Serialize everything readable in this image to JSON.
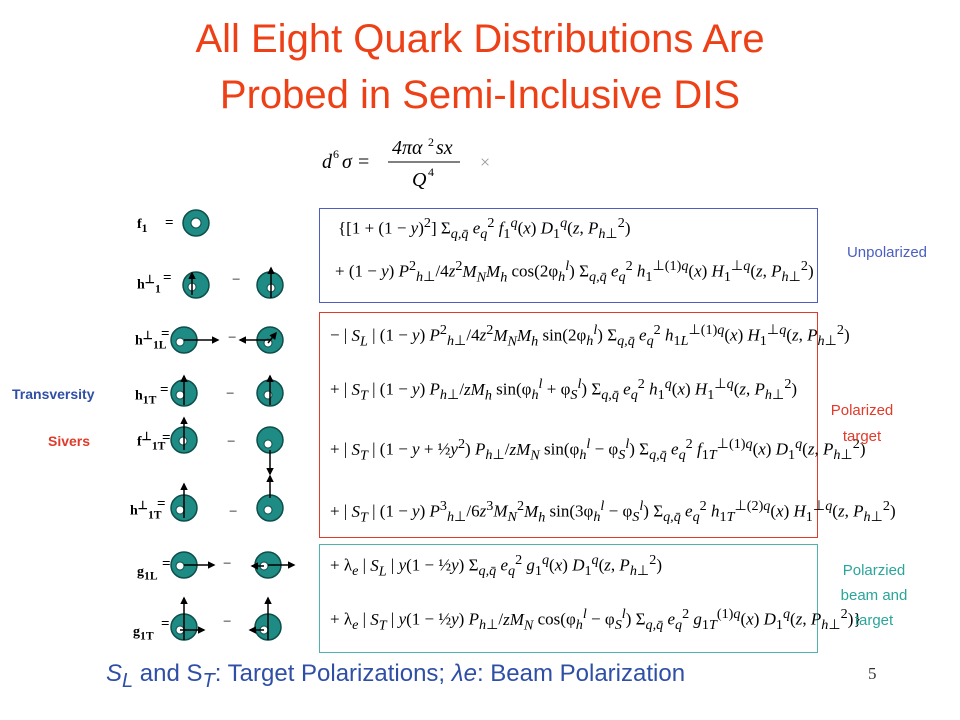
{
  "title": {
    "line1": "All Eight Quark Distributions Are",
    "line2": "Probed in Semi-Inclusive DIS"
  },
  "labels": {
    "unpolarized": "Unpolarized",
    "polarized_target_line1": "Polarized",
    "polarized_target_line2": "target",
    "beam_target_line1": "Polarzied",
    "beam_target_line2": "beam and",
    "beam_target_line3": "target",
    "transversity": "Transversity",
    "sivers": "Sivers"
  },
  "distributions": [
    {
      "main": "f",
      "sub": "1",
      "sup": ""
    },
    {
      "main": "h",
      "sub": "1",
      "sup": "⊥"
    },
    {
      "main": "h",
      "sub": "1L",
      "sup": "⊥"
    },
    {
      "main": "h",
      "sub": "1T",
      "sup": ""
    },
    {
      "main": "f",
      "sub": "1T",
      "sup": "⊥"
    },
    {
      "main": "h",
      "sub": "1T",
      "sup": "⊥"
    },
    {
      "main": "g",
      "sub": "1L",
      "sup": ""
    },
    {
      "main": "g",
      "sub": "1T",
      "sup": ""
    }
  ],
  "footer": {
    "s": "S",
    "l": "L",
    "and_s": " and S",
    "t": "T",
    "text1": ": Target Polarizations; ",
    "lam": "λe",
    "text2": ": Beam Polarization"
  },
  "page_number": "5",
  "colors": {
    "title": "#ee4016",
    "footer": "#2f4fa6",
    "icon": "#1e8b84",
    "box_unpolarized": "#4a5fc1",
    "box_polarized": "#e03a2a",
    "box_beam": "#4fb2ae"
  }
}
